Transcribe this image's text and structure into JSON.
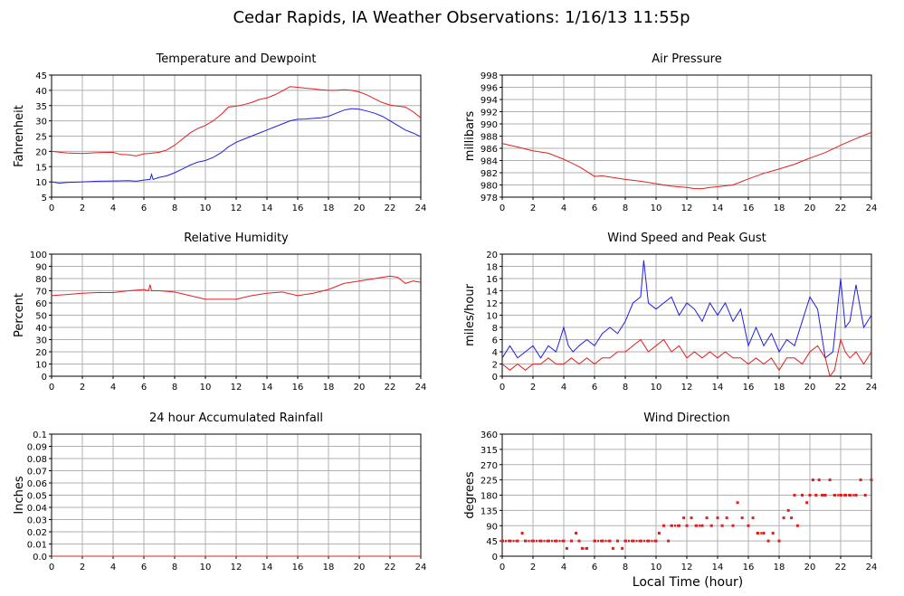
{
  "page": {
    "title": "Cedar Rapids, IA Weather Observations: 1/16/13 11:55p",
    "xlabel": "Local Time (hour)"
  },
  "chart_data": [
    {
      "type": "line",
      "title": "Temperature and Dewpoint",
      "ylabel": "Fahrenheit",
      "xlim": [
        0,
        24
      ],
      "ylim": [
        5,
        45
      ],
      "yticks": [
        5,
        10,
        15,
        20,
        25,
        30,
        35,
        40,
        45
      ],
      "xticks": [
        0,
        2,
        4,
        6,
        8,
        10,
        12,
        14,
        16,
        18,
        20,
        22,
        24
      ],
      "grid": true,
      "series": [
        {
          "color": "#e02020",
          "x": [
            0,
            1,
            2,
            3,
            4,
            4.5,
            5,
            5.5,
            6,
            6.5,
            7,
            7.5,
            8,
            8.5,
            9,
            9.5,
            10,
            10.5,
            11,
            11.5,
            12,
            12.5,
            13,
            13.5,
            14,
            14.5,
            15,
            15.5,
            16,
            16.5,
            17,
            17.5,
            18,
            18.5,
            19,
            19.5,
            20,
            20.5,
            21,
            21.5,
            22,
            22.5,
            23,
            23.5,
            24
          ],
          "y": [
            20,
            19.5,
            19.3,
            19.6,
            19.7,
            19.0,
            18.9,
            18.5,
            19.2,
            19.4,
            19.7,
            20.5,
            22,
            24,
            26,
            27.5,
            28.5,
            30,
            32,
            34.5,
            34.8,
            35.3,
            36,
            37,
            37.5,
            38.5,
            39.8,
            41.2,
            41,
            40.7,
            40.5,
            40.2,
            40,
            40,
            40.2,
            40,
            39.5,
            38.5,
            37.2,
            36,
            35.2,
            34.8,
            34.5,
            33,
            31
          ]
        },
        {
          "color": "#2020e0",
          "x": [
            0,
            0.5,
            1,
            2,
            3,
            4,
            5,
            5.5,
            6,
            6.4,
            6.5,
            6.6,
            7,
            7.5,
            8,
            8.5,
            9,
            9.5,
            10,
            10.5,
            11,
            11.5,
            12,
            12.5,
            13,
            13.5,
            14,
            14.5,
            15,
            15.5,
            16,
            16.5,
            17,
            17.5,
            18,
            18.5,
            19,
            19.5,
            20,
            20.5,
            21,
            21.5,
            22,
            22.5,
            23,
            23.5,
            24
          ],
          "y": [
            10,
            9.6,
            9.8,
            10,
            10.2,
            10.3,
            10.4,
            10.2,
            10.6,
            10.8,
            12.5,
            10.8,
            11.5,
            12,
            13,
            14.2,
            15.5,
            16.5,
            17,
            18,
            19.5,
            21.5,
            23,
            24,
            25,
            26,
            27,
            28,
            29,
            30,
            30.5,
            30.6,
            30.8,
            31,
            31.5,
            32.5,
            33.5,
            34,
            33.8,
            33.2,
            32.5,
            31.5,
            30,
            28.5,
            27,
            26,
            24.8
          ]
        }
      ]
    },
    {
      "type": "line",
      "title": "Air Pressure",
      "ylabel": "millibars",
      "xlim": [
        0,
        24
      ],
      "ylim": [
        978,
        998
      ],
      "yticks": [
        978,
        980,
        982,
        984,
        986,
        988,
        990,
        992,
        994,
        996,
        998
      ],
      "xticks": [
        0,
        2,
        4,
        6,
        8,
        10,
        12,
        14,
        16,
        18,
        20,
        22,
        24
      ],
      "grid": true,
      "series": [
        {
          "color": "#e02020",
          "x": [
            0,
            1,
            2,
            3,
            4,
            5,
            5.5,
            6,
            6.5,
            7,
            8,
            9,
            10,
            11,
            12,
            12.5,
            13,
            13.5,
            14,
            15,
            16,
            17,
            18,
            19,
            20,
            21,
            22,
            23,
            24
          ],
          "y": [
            986.8,
            986.2,
            985.6,
            985.2,
            984.2,
            983,
            982.2,
            981.4,
            981.5,
            981.3,
            980.9,
            980.6,
            980.2,
            979.8,
            979.6,
            979.4,
            979.4,
            979.6,
            979.7,
            980,
            981,
            981.9,
            982.6,
            983.4,
            984.4,
            985.3,
            986.5,
            987.6,
            988.6
          ]
        }
      ]
    },
    {
      "type": "line",
      "title": "Relative Humidity",
      "ylabel": "Percent",
      "xlim": [
        0,
        24
      ],
      "ylim": [
        0,
        100
      ],
      "yticks": [
        0,
        10,
        20,
        30,
        40,
        50,
        60,
        70,
        80,
        90,
        100
      ],
      "xticks": [
        0,
        2,
        4,
        6,
        8,
        10,
        12,
        14,
        16,
        18,
        20,
        22,
        24
      ],
      "grid": true,
      "series": [
        {
          "color": "#e02020",
          "x": [
            0,
            1,
            2,
            3,
            4,
            5,
            6,
            6.3,
            6.4,
            6.5,
            7,
            8,
            9,
            10,
            11,
            12,
            13,
            14,
            15,
            16,
            17,
            18,
            19,
            20,
            21,
            22,
            22.5,
            23,
            23.5,
            24
          ],
          "y": [
            66,
            67,
            68,
            68.5,
            68.5,
            70,
            71,
            70,
            75,
            70,
            70,
            69,
            66,
            63,
            63,
            63,
            66,
            68,
            69,
            66,
            68,
            71,
            76,
            78,
            80,
            82,
            81,
            76,
            78,
            77
          ]
        }
      ]
    },
    {
      "type": "line",
      "title": "Wind Speed and Peak Gust",
      "ylabel": "miles/hour",
      "xlim": [
        0,
        24
      ],
      "ylim": [
        0,
        20
      ],
      "yticks": [
        0,
        2,
        4,
        6,
        8,
        10,
        12,
        14,
        16,
        18,
        20
      ],
      "xticks": [
        0,
        2,
        4,
        6,
        8,
        10,
        12,
        14,
        16,
        18,
        20,
        22,
        24
      ],
      "grid": true,
      "series": [
        {
          "color": "#2020e0",
          "x": [
            0,
            0.5,
            1,
            1.5,
            2,
            2.5,
            3,
            3.5,
            4,
            4.3,
            4.6,
            5,
            5.5,
            6,
            6.5,
            7,
            7.5,
            8,
            8.5,
            9,
            9.2,
            9.5,
            10,
            10.5,
            11,
            11.5,
            12,
            12.5,
            13,
            13.5,
            14,
            14.5,
            15,
            15.5,
            16,
            16.5,
            17,
            17.5,
            18,
            18.5,
            19,
            19.5,
            20,
            20.5,
            21,
            21.5,
            22,
            22.3,
            22.6,
            23,
            23.5,
            24
          ],
          "y": [
            3,
            5,
            3,
            4,
            5,
            3,
            5,
            4,
            8,
            5,
            4,
            5,
            6,
            5,
            7,
            8,
            7,
            9,
            12,
            13,
            19,
            12,
            11,
            12,
            13,
            10,
            12,
            11,
            9,
            12,
            10,
            12,
            9,
            11,
            5,
            8,
            5,
            7,
            4,
            6,
            5,
            9,
            13,
            11,
            3,
            4,
            16,
            8,
            9,
            15,
            8,
            10
          ]
        },
        {
          "color": "#e02020",
          "x": [
            0,
            0.5,
            1,
            1.5,
            2,
            2.5,
            3,
            3.5,
            4,
            4.5,
            5,
            5.5,
            6,
            6.5,
            7,
            7.5,
            8,
            8.5,
            9,
            9.5,
            10,
            10.5,
            11,
            11.5,
            12,
            12.5,
            13,
            13.5,
            14,
            14.5,
            15,
            15.5,
            16,
            16.5,
            17,
            17.5,
            18,
            18.5,
            19,
            19.5,
            20,
            20.5,
            21,
            21.3,
            21.6,
            22,
            22.3,
            22.6,
            23,
            23.5,
            24
          ],
          "y": [
            2,
            1,
            2,
            1,
            2,
            2,
            3,
            2,
            2,
            3,
            2,
            3,
            2,
            3,
            3,
            4,
            4,
            5,
            6,
            4,
            5,
            6,
            4,
            5,
            3,
            4,
            3,
            4,
            3,
            4,
            3,
            3,
            2,
            3,
            2,
            3,
            1,
            3,
            3,
            2,
            4,
            5,
            3,
            0,
            1,
            6,
            4,
            3,
            4,
            2,
            4
          ]
        }
      ]
    },
    {
      "type": "line",
      "title": "24 hour Accumulated Rainfall",
      "ylabel": "Inches",
      "xlim": [
        0,
        24
      ],
      "ylim": [
        0,
        0.1
      ],
      "yticks": [
        "0.0",
        "0.01",
        "0.02",
        "0.03",
        "0.04",
        "0.05",
        "0.06",
        "0.07",
        "0.08",
        "0.09",
        "0.1"
      ],
      "xticks": [
        0,
        2,
        4,
        6,
        8,
        10,
        12,
        14,
        16,
        18,
        20,
        22,
        24
      ],
      "grid": true,
      "series": [
        {
          "color": "#e02020",
          "x": [
            0,
            24
          ],
          "y": [
            0,
            0
          ]
        }
      ]
    },
    {
      "type": "scatter",
      "title": "Wind Direction",
      "ylabel": "degrees",
      "xlim": [
        0,
        24
      ],
      "ylim": [
        0,
        360
      ],
      "yticks": [
        0,
        45,
        90,
        135,
        180,
        225,
        270,
        315,
        360
      ],
      "xticks": [
        0,
        2,
        4,
        6,
        8,
        10,
        12,
        14,
        16,
        18,
        20,
        22,
        24
      ],
      "grid": true,
      "series": [
        {
          "color": "#e02020",
          "x": [
            0,
            0.5,
            1,
            1.3,
            1.5,
            2,
            2.5,
            3,
            3.5,
            4,
            4.2,
            4.5,
            4.8,
            5,
            5.2,
            5.5,
            6,
            6.5,
            7,
            7.2,
            7.5,
            7.8,
            8,
            8.5,
            9,
            9.5,
            10,
            10.2,
            10.5,
            10.8,
            11,
            11.5,
            11.8,
            12,
            12.3,
            12.6,
            13,
            13.3,
            13.6,
            14,
            14.3,
            14.6,
            15,
            15.3,
            15.6,
            16,
            16.3,
            16.6,
            17,
            17.3,
            17.6,
            18,
            18.3,
            18.6,
            18.8,
            19,
            19.2,
            19.5,
            19.8,
            20,
            20.2,
            20.4,
            20.6,
            20.8,
            21,
            21.3,
            21.6,
            22,
            22.3,
            22.6,
            23,
            23.3,
            23.6,
            24
          ],
          "y": [
            45,
            45,
            45,
            68,
            45,
            45,
            45,
            45,
            45,
            45,
            23,
            45,
            68,
            45,
            23,
            23,
            45,
            45,
            45,
            23,
            45,
            23,
            45,
            45,
            45,
            45,
            45,
            68,
            90,
            45,
            90,
            90,
            113,
            90,
            113,
            90,
            90,
            113,
            90,
            113,
            90,
            113,
            90,
            158,
            113,
            90,
            113,
            68,
            68,
            45,
            68,
            45,
            113,
            135,
            113,
            180,
            90,
            180,
            158,
            180,
            225,
            180,
            225,
            180,
            180,
            225,
            180,
            180,
            180,
            180,
            180,
            225,
            180,
            225
          ]
        }
      ]
    }
  ]
}
